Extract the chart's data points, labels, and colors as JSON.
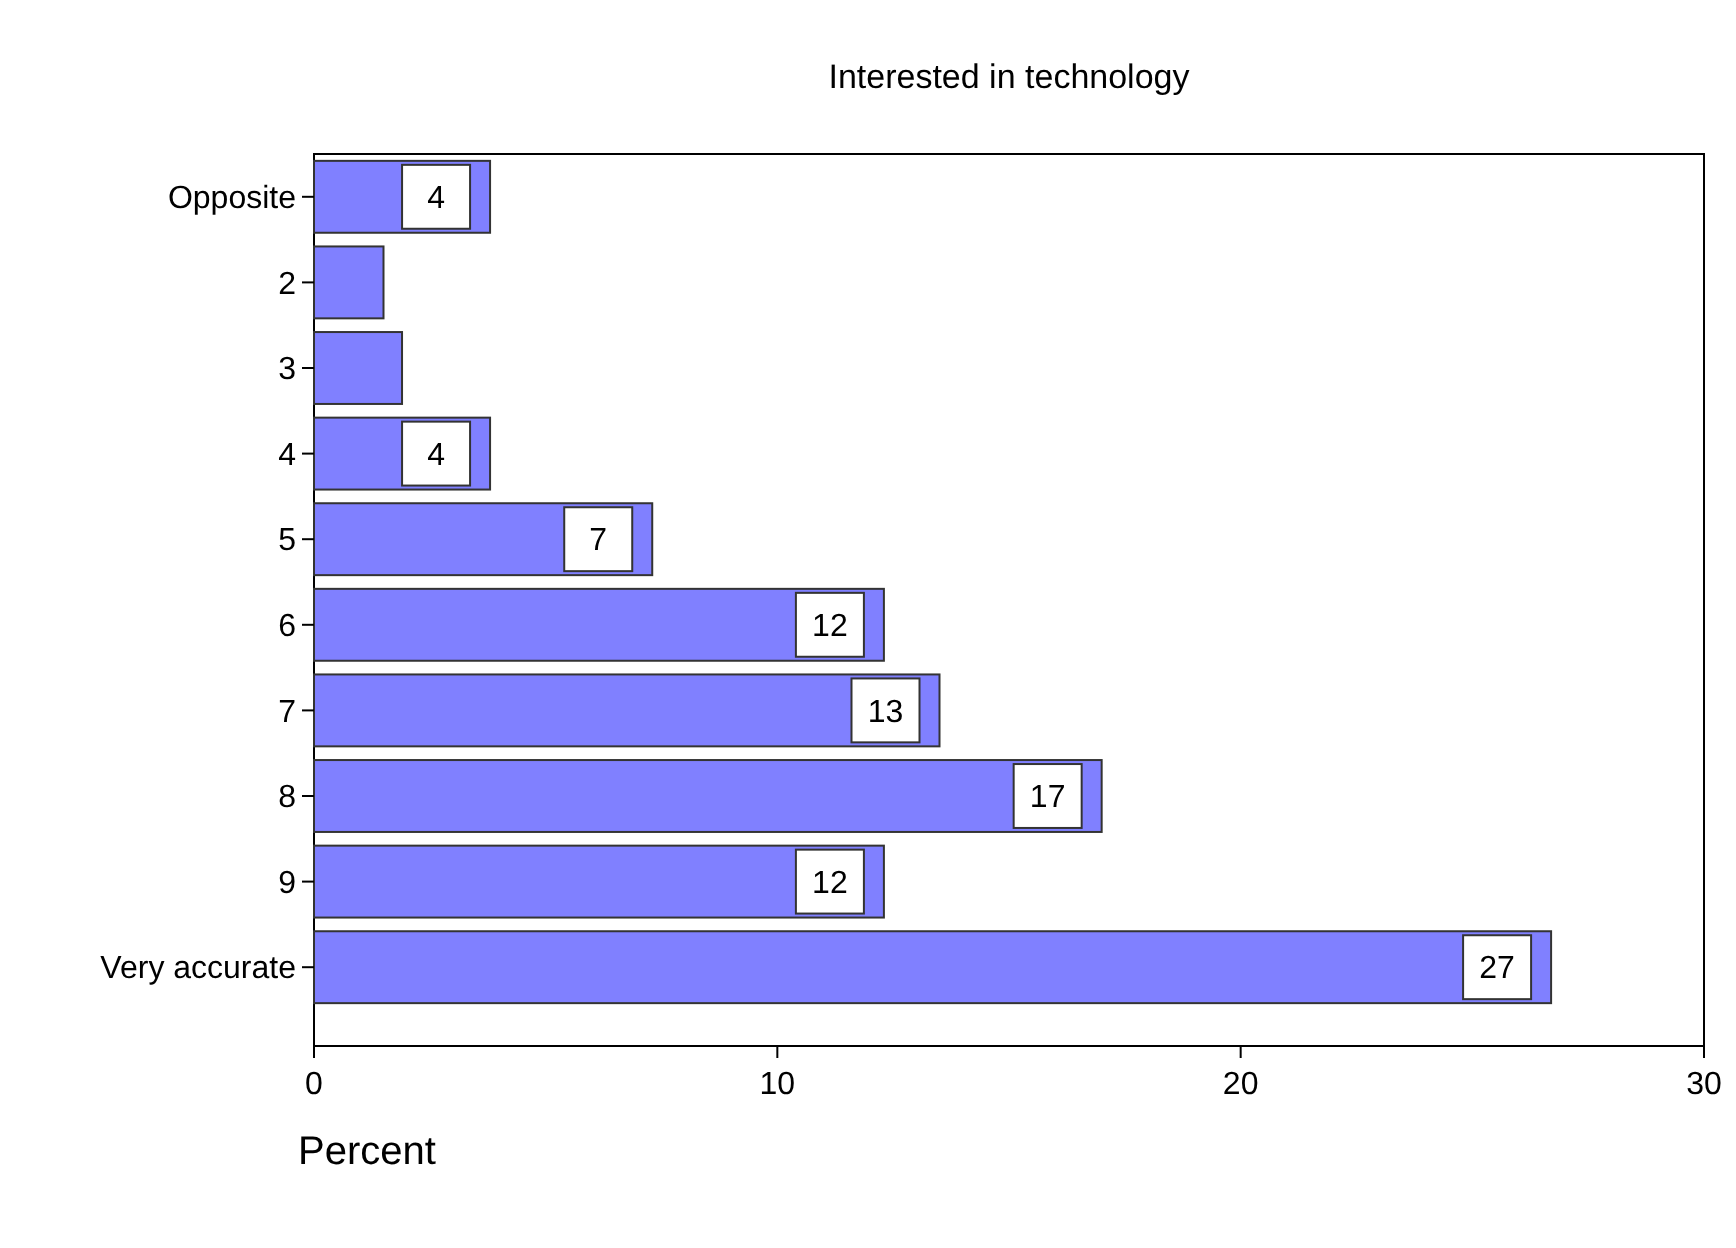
{
  "chart_data": {
    "type": "bar",
    "orientation": "horizontal",
    "title": "Interested in technology",
    "xlabel": "Percent",
    "categories": [
      "Opposite",
      "2",
      "3",
      "4",
      "5",
      "6",
      "7",
      "8",
      "9",
      "Very accurate"
    ],
    "values": [
      3.8,
      1.5,
      1.9,
      3.8,
      7.3,
      12.3,
      13.5,
      17.0,
      12.3,
      26.7
    ],
    "value_labels": [
      "4",
      null,
      null,
      "4",
      "7",
      "12",
      "13",
      "17",
      "12",
      "27"
    ],
    "color": "#8080ff",
    "xlim": [
      0,
      30
    ],
    "xticks": [
      0,
      10,
      20,
      30
    ],
    "grid": false
  }
}
